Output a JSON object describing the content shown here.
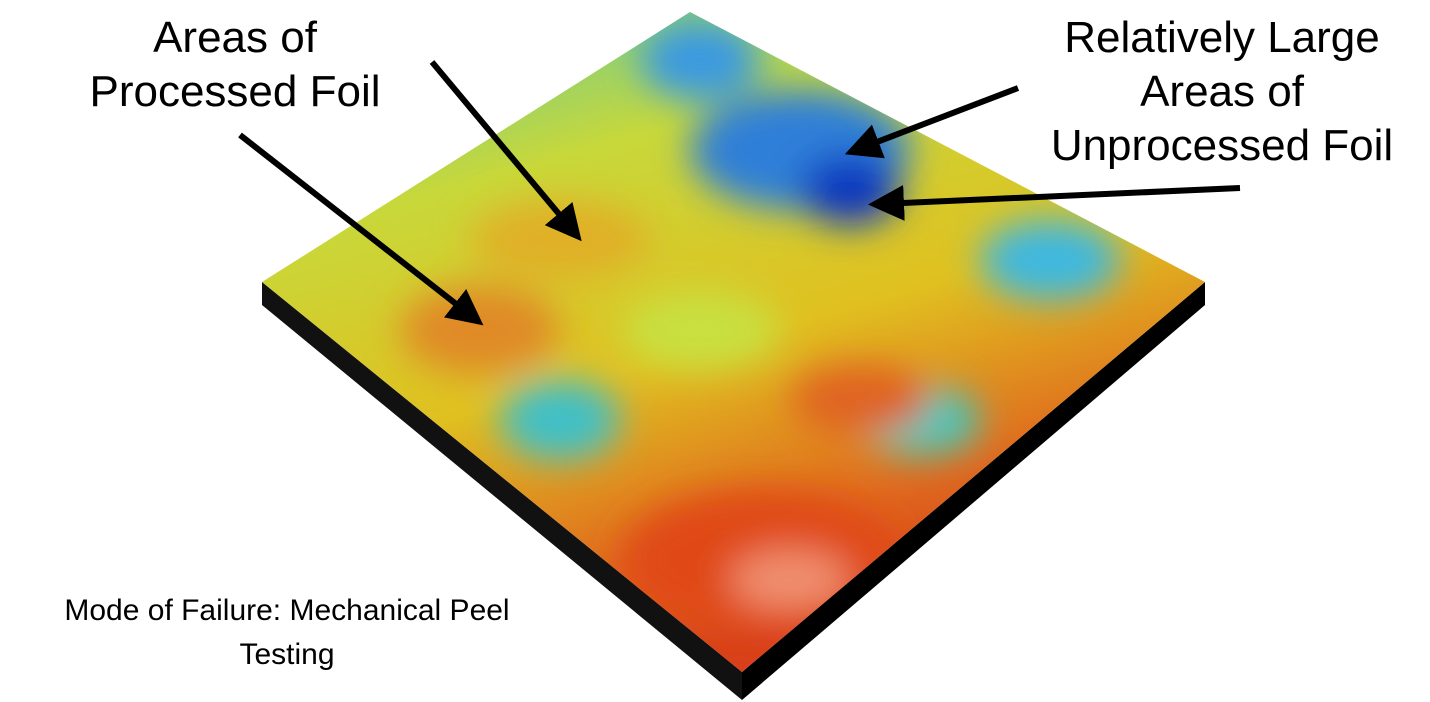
{
  "labels": {
    "processed": {
      "lines": [
        "Areas of",
        "Processed Foil"
      ]
    },
    "unprocessed": {
      "lines": [
        "Relatively Large",
        "Areas of",
        "Unprocessed Foil"
      ]
    },
    "caption": {
      "lines": [
        "Mode of Failure: Mechanical Peel",
        "Testing"
      ]
    }
  }
}
